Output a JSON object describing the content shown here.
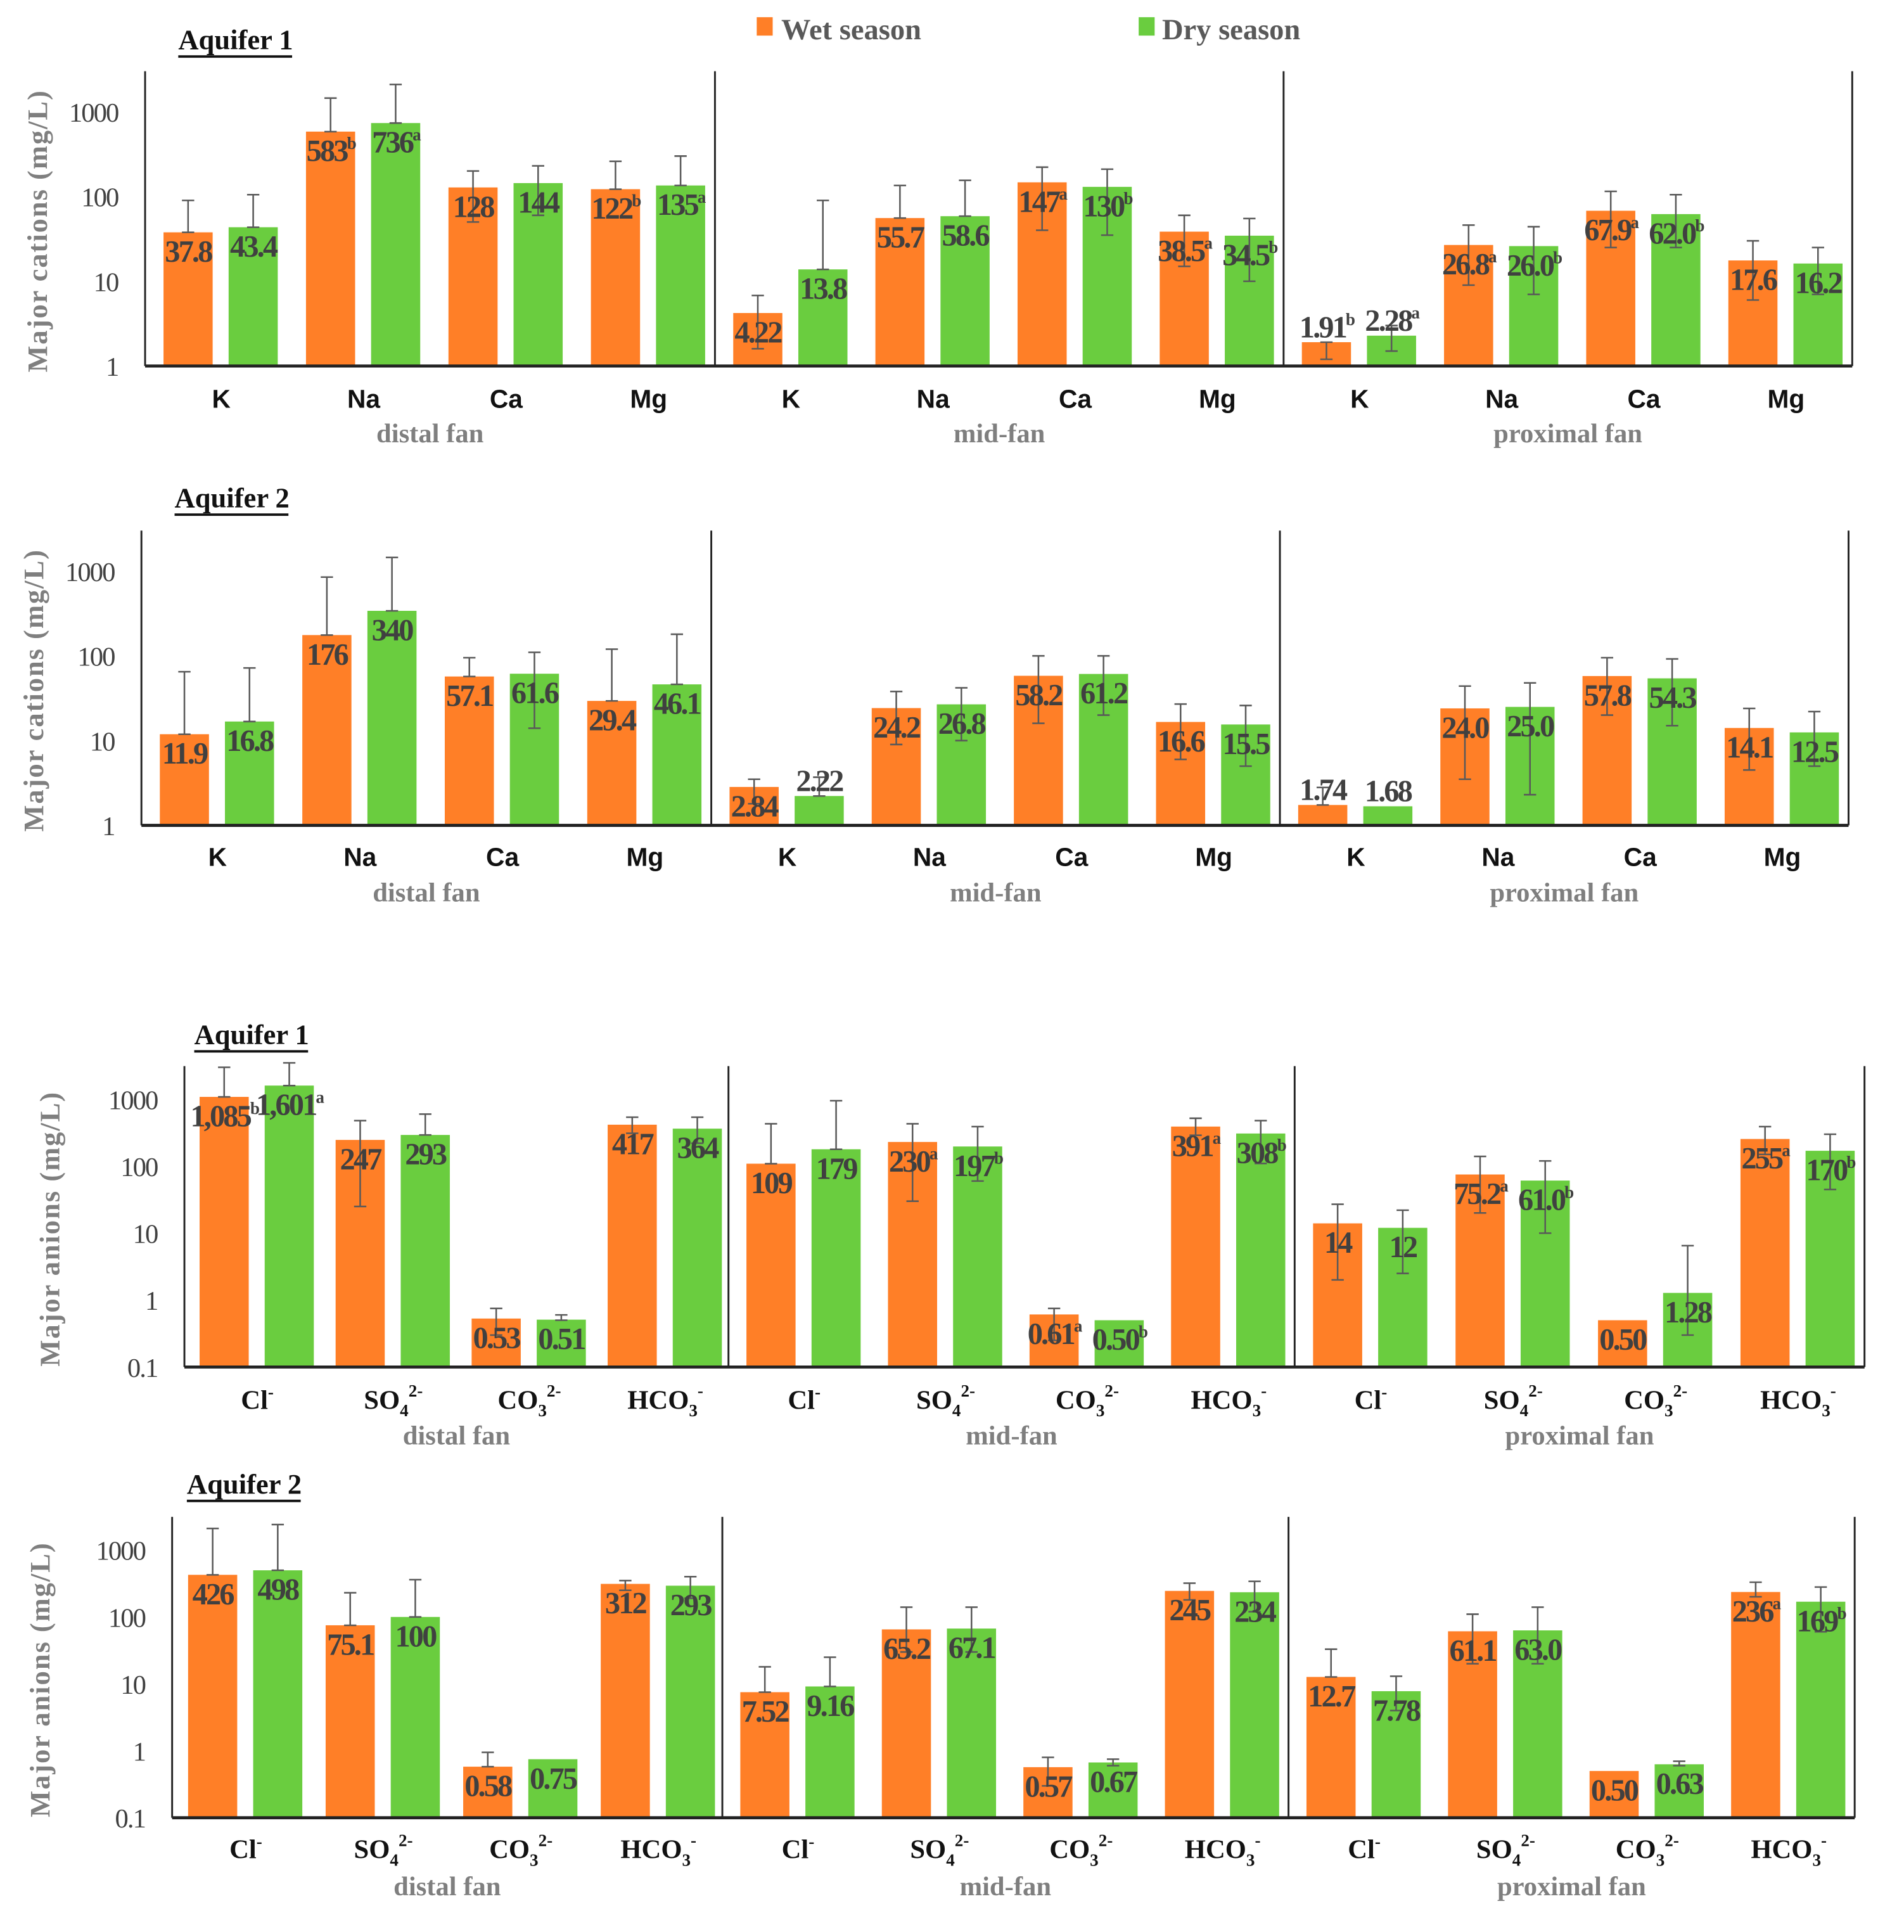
{
  "colors": {
    "wet": "#FF7F27",
    "dry": "#6ACD3F",
    "error": "#595959"
  },
  "legend": {
    "wet_label": "Wet season",
    "dry_label": "Dry season"
  },
  "chart_data": [
    {
      "type": "bar",
      "title": "Aquifer 1",
      "ylabel": "Major cations (mg/L)",
      "yscale": "log",
      "ylim": [
        1,
        3000
      ],
      "ticks": [
        "1",
        "10",
        "100",
        "1000"
      ],
      "categories": [
        {
          "base": "K"
        },
        {
          "base": "Na"
        },
        {
          "base": "Ca"
        },
        {
          "base": "Mg"
        }
      ],
      "groups": [
        {
          "name": "distal fan",
          "wet": [
            {
              "v": 37.8,
              "t": "37.8",
              "lo": 37.8,
              "hi": 90
            },
            {
              "v": 583,
              "t": "583",
              "s": "b",
              "lo": 583,
              "hi": 1450
            },
            {
              "v": 128,
              "t": "128",
              "lo": 50,
              "hi": 200
            },
            {
              "v": 122,
              "t": "122",
              "s": "b",
              "lo": 122,
              "hi": 260
            }
          ],
          "dry": [
            {
              "v": 43.4,
              "t": "43.4",
              "lo": 43.4,
              "hi": 105
            },
            {
              "v": 736,
              "t": "736",
              "s": "a",
              "lo": 736,
              "hi": 2100
            },
            {
              "v": 144,
              "t": "144",
              "lo": 60,
              "hi": 230
            },
            {
              "v": 135,
              "t": "135",
              "s": "a",
              "lo": 135,
              "hi": 300
            }
          ]
        },
        {
          "name": "mid-fan",
          "wet": [
            {
              "v": 4.22,
              "t": "4.22",
              "lo": 1.6,
              "hi": 6.8
            },
            {
              "v": 55.7,
              "t": "55.7",
              "lo": 55.7,
              "hi": 135
            },
            {
              "v": 147,
              "t": "147",
              "s": "a",
              "lo": 40,
              "hi": 222
            },
            {
              "v": 38.5,
              "t": "38.5",
              "s": "a",
              "lo": 15,
              "hi": 60
            }
          ],
          "dry": [
            {
              "v": 13.8,
              "t": "13.8",
              "lo": 13.8,
              "hi": 90
            },
            {
              "v": 58.6,
              "t": "58.6",
              "lo": 58.6,
              "hi": 155
            },
            {
              "v": 130,
              "t": "130",
              "s": "b",
              "lo": 35,
              "hi": 210
            },
            {
              "v": 34.5,
              "t": "34.5",
              "s": "b",
              "lo": 10,
              "hi": 55
            }
          ]
        },
        {
          "name": "proximal fan",
          "wet": [
            {
              "v": 1.91,
              "t": "1.91",
              "s": "b",
              "lo": 1.2,
              "hi": 1.91
            },
            {
              "v": 26.8,
              "t": "26.8",
              "s": "a",
              "lo": 9,
              "hi": 46
            },
            {
              "v": 67.9,
              "t": "67.9",
              "s": "a",
              "lo": 25,
              "hi": 115
            },
            {
              "v": 17.6,
              "t": "17.6",
              "lo": 6,
              "hi": 30
            }
          ],
          "dry": [
            {
              "v": 2.28,
              "t": "2.28",
              "s": "a",
              "lo": 1.5,
              "hi": 3
            },
            {
              "v": 26.0,
              "t": "26.0",
              "s": "b",
              "lo": 7,
              "hi": 44
            },
            {
              "v": 62.0,
              "t": "62.0",
              "s": "b",
              "lo": 25,
              "hi": 105
            },
            {
              "v": 16.2,
              "t": "16.2",
              "lo": 7,
              "hi": 25
            }
          ]
        }
      ]
    },
    {
      "type": "bar",
      "title": "Aquifer 2",
      "ylabel": "Major cations (mg/L)",
      "yscale": "log",
      "ylim": [
        1,
        3000
      ],
      "ticks": [
        "1",
        "10",
        "100",
        "1000"
      ],
      "categories": [
        {
          "base": "K"
        },
        {
          "base": "Na"
        },
        {
          "base": "Ca"
        },
        {
          "base": "Mg"
        }
      ],
      "groups": [
        {
          "name": "distal fan",
          "wet": [
            {
              "v": 11.9,
              "t": "11.9",
              "lo": 11.9,
              "hi": 65
            },
            {
              "v": 176,
              "t": "176",
              "lo": 176,
              "hi": 850
            },
            {
              "v": 57.1,
              "t": "57.1",
              "lo": 57.1,
              "hi": 95
            },
            {
              "v": 29.4,
              "t": "29.4",
              "lo": 29.4,
              "hi": 120
            }
          ],
          "dry": [
            {
              "v": 16.8,
              "t": "16.8",
              "lo": 16.8,
              "hi": 72
            },
            {
              "v": 340,
              "t": "340",
              "lo": 340,
              "hi": 1450
            },
            {
              "v": 61.6,
              "t": "61.6",
              "lo": 14,
              "hi": 110
            },
            {
              "v": 46.1,
              "t": "46.1",
              "lo": 46.1,
              "hi": 180
            }
          ]
        },
        {
          "name": "mid-fan",
          "wet": [
            {
              "v": 2.84,
              "t": "2.84",
              "lo": 1.8,
              "hi": 3.5
            },
            {
              "v": 24.2,
              "t": "24.2",
              "lo": 9,
              "hi": 38
            },
            {
              "v": 58.2,
              "t": "58.2",
              "lo": 16,
              "hi": 100
            },
            {
              "v": 16.6,
              "t": "16.6",
              "lo": 6,
              "hi": 27
            }
          ],
          "dry": [
            {
              "v": 2.22,
              "t": "2.22",
              "lo": 2.22,
              "hi": 3.7
            },
            {
              "v": 26.8,
              "t": "26.8",
              "lo": 10,
              "hi": 42
            },
            {
              "v": 61.2,
              "t": "61.2",
              "lo": 20,
              "hi": 100
            },
            {
              "v": 15.5,
              "t": "15.5",
              "lo": 5,
              "hi": 26
            }
          ]
        },
        {
          "name": "proximal fan",
          "wet": [
            {
              "v": 1.74,
              "t": "1.74",
              "lo": 1.74,
              "hi": 2.8
            },
            {
              "v": 24.0,
              "t": "24.0",
              "lo": 3.5,
              "hi": 44
            },
            {
              "v": 57.8,
              "t": "57.8",
              "lo": 20,
              "hi": 95
            },
            {
              "v": 14.1,
              "t": "14.1",
              "lo": 4.5,
              "hi": 24
            }
          ],
          "dry": [
            {
              "v": 1.68,
              "t": "1.68",
              "lo": 1.68,
              "hi": 1.68
            },
            {
              "v": 25.0,
              "t": "25.0",
              "lo": 2.3,
              "hi": 48
            },
            {
              "v": 54.3,
              "t": "54.3",
              "lo": 15,
              "hi": 92
            },
            {
              "v": 12.5,
              "t": "12.5",
              "lo": 5,
              "hi": 22
            }
          ]
        }
      ]
    },
    {
      "type": "bar",
      "title": "Aquifer 1",
      "ylabel": "Major anions (mg/L)",
      "yscale": "log",
      "ylim": [
        0.1,
        3000
      ],
      "ticks": [
        "0.1",
        "1",
        "10",
        "100",
        "1000"
      ],
      "categories": [
        {
          "base": "Cl",
          "sup": "-"
        },
        {
          "base": "SO",
          "sub": "4",
          "sup": "2-"
        },
        {
          "base": "CO",
          "sub": "3",
          "sup": "2-"
        },
        {
          "base": "HCO",
          "sub": "3",
          "sup": "-"
        }
      ],
      "groups": [
        {
          "name": "distal fan",
          "wet": [
            {
              "v": 1085,
              "t": "1,085",
              "s": "b",
              "lo": 1085,
              "hi": 3000
            },
            {
              "v": 247,
              "t": "247",
              "lo": 25,
              "hi": 480
            },
            {
              "v": 0.53,
              "t": "0.53",
              "lo": 0.3,
              "hi": 0.75
            },
            {
              "v": 417,
              "t": "417",
              "lo": 310,
              "hi": 540
            }
          ],
          "dry": [
            {
              "v": 1601,
              "t": "1,601",
              "s": "a",
              "lo": 1601,
              "hi": 3500
            },
            {
              "v": 293,
              "t": "293",
              "lo": 293,
              "hi": 600
            },
            {
              "v": 0.51,
              "t": "0.51",
              "lo": 0.5,
              "hi": 0.6
            },
            {
              "v": 364,
              "t": "364",
              "lo": 220,
              "hi": 540
            }
          ]
        },
        {
          "name": "mid-fan",
          "wet": [
            {
              "v": 109,
              "t": "109",
              "lo": 109,
              "hi": 430
            },
            {
              "v": 230,
              "t": "230",
              "s": "a",
              "lo": 30,
              "hi": 430
            },
            {
              "v": 0.61,
              "t": "0.61",
              "s": "a",
              "lo": 0.25,
              "hi": 0.75
            },
            {
              "v": 391,
              "t": "391",
              "s": "a",
              "lo": 290,
              "hi": 520
            }
          ],
          "dry": [
            {
              "v": 179,
              "t": "179",
              "lo": 179,
              "hi": 950
            },
            {
              "v": 197,
              "t": "197",
              "s": "b",
              "lo": 60,
              "hi": 390
            },
            {
              "v": 0.5,
              "t": "0.50",
              "s": "b",
              "lo": 0.5,
              "hi": 0.5
            },
            {
              "v": 308,
              "t": "308",
              "s": "b",
              "lo": 110,
              "hi": 480
            }
          ]
        },
        {
          "name": "proximal fan",
          "wet": [
            {
              "v": 14,
              "t": "14",
              "lo": 2,
              "hi": 27
            },
            {
              "v": 75.2,
              "t": "75.2",
              "s": "a",
              "lo": 20,
              "hi": 140
            },
            {
              "v": 0.5,
              "t": "0.50",
              "lo": 0.5,
              "hi": 0.5
            },
            {
              "v": 255,
              "t": "255",
              "s": "a",
              "lo": 150,
              "hi": 390
            }
          ],
          "dry": [
            {
              "v": 12,
              "t": "12",
              "lo": 2.5,
              "hi": 22
            },
            {
              "v": 61.0,
              "t": "61.0",
              "s": "b",
              "lo": 10,
              "hi": 120
            },
            {
              "v": 1.28,
              "t": "1.28",
              "lo": 0.3,
              "hi": 6.5
            },
            {
              "v": 170,
              "t": "170",
              "s": "b",
              "lo": 45,
              "hi": 300
            }
          ]
        }
      ]
    },
    {
      "type": "bar",
      "title": "Aquifer 2",
      "ylabel": "Major anions (mg/L)",
      "yscale": "log",
      "ylim": [
        0.1,
        3000
      ],
      "ticks": [
        "0.1",
        "1",
        "10",
        "100",
        "1000"
      ],
      "categories": [
        {
          "base": "Cl",
          "sup": "-"
        },
        {
          "base": "SO",
          "sub": "4",
          "sup": "2-"
        },
        {
          "base": "CO",
          "sub": "3",
          "sup": "2-"
        },
        {
          "base": "HCO",
          "sub": "3",
          "sup": "-"
        }
      ],
      "groups": [
        {
          "name": "distal fan",
          "wet": [
            {
              "v": 426,
              "t": "426",
              "lo": 426,
              "hi": 2100
            },
            {
              "v": 75.1,
              "t": "75.1",
              "lo": 75.1,
              "hi": 230
            },
            {
              "v": 0.58,
              "t": "0.58",
              "lo": 0.58,
              "hi": 0.95
            },
            {
              "v": 312,
              "t": "312",
              "lo": 250,
              "hi": 350
            }
          ],
          "dry": [
            {
              "v": 498,
              "t": "498",
              "lo": 498,
              "hi": 2400
            },
            {
              "v": 100,
              "t": "100",
              "lo": 100,
              "hi": 360
            },
            {
              "v": 0.75,
              "t": "0.75",
              "lo": 0.75,
              "hi": 0.75
            },
            {
              "v": 293,
              "t": "293",
              "lo": 190,
              "hi": 400
            }
          ]
        },
        {
          "name": "mid-fan",
          "wet": [
            {
              "v": 7.52,
              "t": "7.52",
              "lo": 7.52,
              "hi": 18
            },
            {
              "v": 65.2,
              "t": "65.2",
              "lo": 30,
              "hi": 140
            },
            {
              "v": 0.57,
              "t": "0.57",
              "lo": 0.3,
              "hi": 0.8
            },
            {
              "v": 245,
              "t": "245",
              "lo": 180,
              "hi": 320
            }
          ],
          "dry": [
            {
              "v": 9.16,
              "t": "9.16",
              "lo": 9.16,
              "hi": 25
            },
            {
              "v": 67.1,
              "t": "67.1",
              "lo": 30,
              "hi": 140
            },
            {
              "v": 0.67,
              "t": "0.67",
              "lo": 0.6,
              "hi": 0.75
            },
            {
              "v": 234,
              "t": "234",
              "lo": 120,
              "hi": 340
            }
          ]
        },
        {
          "name": "proximal fan",
          "wet": [
            {
              "v": 12.7,
              "t": "12.7",
              "lo": 12.7,
              "hi": 33
            },
            {
              "v": 61.1,
              "t": "61.1",
              "lo": 20,
              "hi": 110
            },
            {
              "v": 0.5,
              "t": "0.50",
              "lo": 0.5,
              "hi": 0.5
            },
            {
              "v": 236,
              "t": "236",
              "s": "a",
              "lo": 200,
              "hi": 330
            }
          ],
          "dry": [
            {
              "v": 7.78,
              "t": "7.78",
              "lo": 4,
              "hi": 13
            },
            {
              "v": 63.0,
              "t": "63.0",
              "lo": 20,
              "hi": 140
            },
            {
              "v": 0.63,
              "t": "0.63",
              "lo": 0.6,
              "hi": 0.7
            },
            {
              "v": 169,
              "t": "169",
              "s": "b",
              "lo": 60,
              "hi": 280
            }
          ]
        }
      ]
    }
  ]
}
